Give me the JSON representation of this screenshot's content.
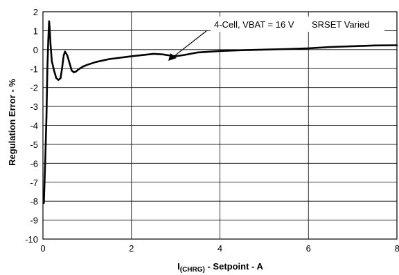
{
  "chart_data": {
    "type": "line",
    "xlabel_main": "I",
    "xlabel_sub": "(CHRG)",
    "xlabel_rest": " - Setpoint - A",
    "ylabel": "Regulation Error - %",
    "xlim": [
      0,
      8
    ],
    "ylim": [
      -10,
      2
    ],
    "x_ticks": [
      0,
      2,
      4,
      6,
      8
    ],
    "y_ticks": [
      2,
      1,
      0,
      -1,
      -2,
      -3,
      -4,
      -5,
      -6,
      -7,
      -8,
      -9,
      -10
    ],
    "grid": true,
    "annotations": {
      "series_label": "4-Cell, VBAT = 16 V",
      "condition_label": "SRSET Varied"
    },
    "series": [
      {
        "x": [
          0.02,
          0.05,
          0.08,
          0.1,
          0.12,
          0.14,
          0.15,
          0.17,
          0.2,
          0.25,
          0.3,
          0.35,
          0.4,
          0.43,
          0.47,
          0.5,
          0.55,
          0.6,
          0.65,
          0.7,
          0.75,
          0.8,
          0.9,
          1.0,
          1.2,
          1.5,
          2.0,
          2.5,
          2.7,
          2.9,
          3.0,
          3.2,
          3.5,
          4.0,
          4.5,
          5.0,
          5.5,
          6.0,
          6.5,
          7.0,
          7.5,
          8.0
        ],
        "values": [
          -8.1,
          -6.0,
          -3.5,
          -1.0,
          0.5,
          1.5,
          1.2,
          0.3,
          -0.6,
          -1.1,
          -1.5,
          -1.6,
          -1.5,
          -1.0,
          -0.3,
          -0.1,
          -0.3,
          -0.7,
          -1.1,
          -1.2,
          -1.15,
          -1.05,
          -0.9,
          -0.8,
          -0.65,
          -0.5,
          -0.35,
          -0.22,
          -0.25,
          -0.32,
          -0.35,
          -0.28,
          -0.15,
          -0.07,
          -0.03,
          0.0,
          0.03,
          0.07,
          0.14,
          0.18,
          0.22,
          0.23
        ]
      }
    ]
  }
}
